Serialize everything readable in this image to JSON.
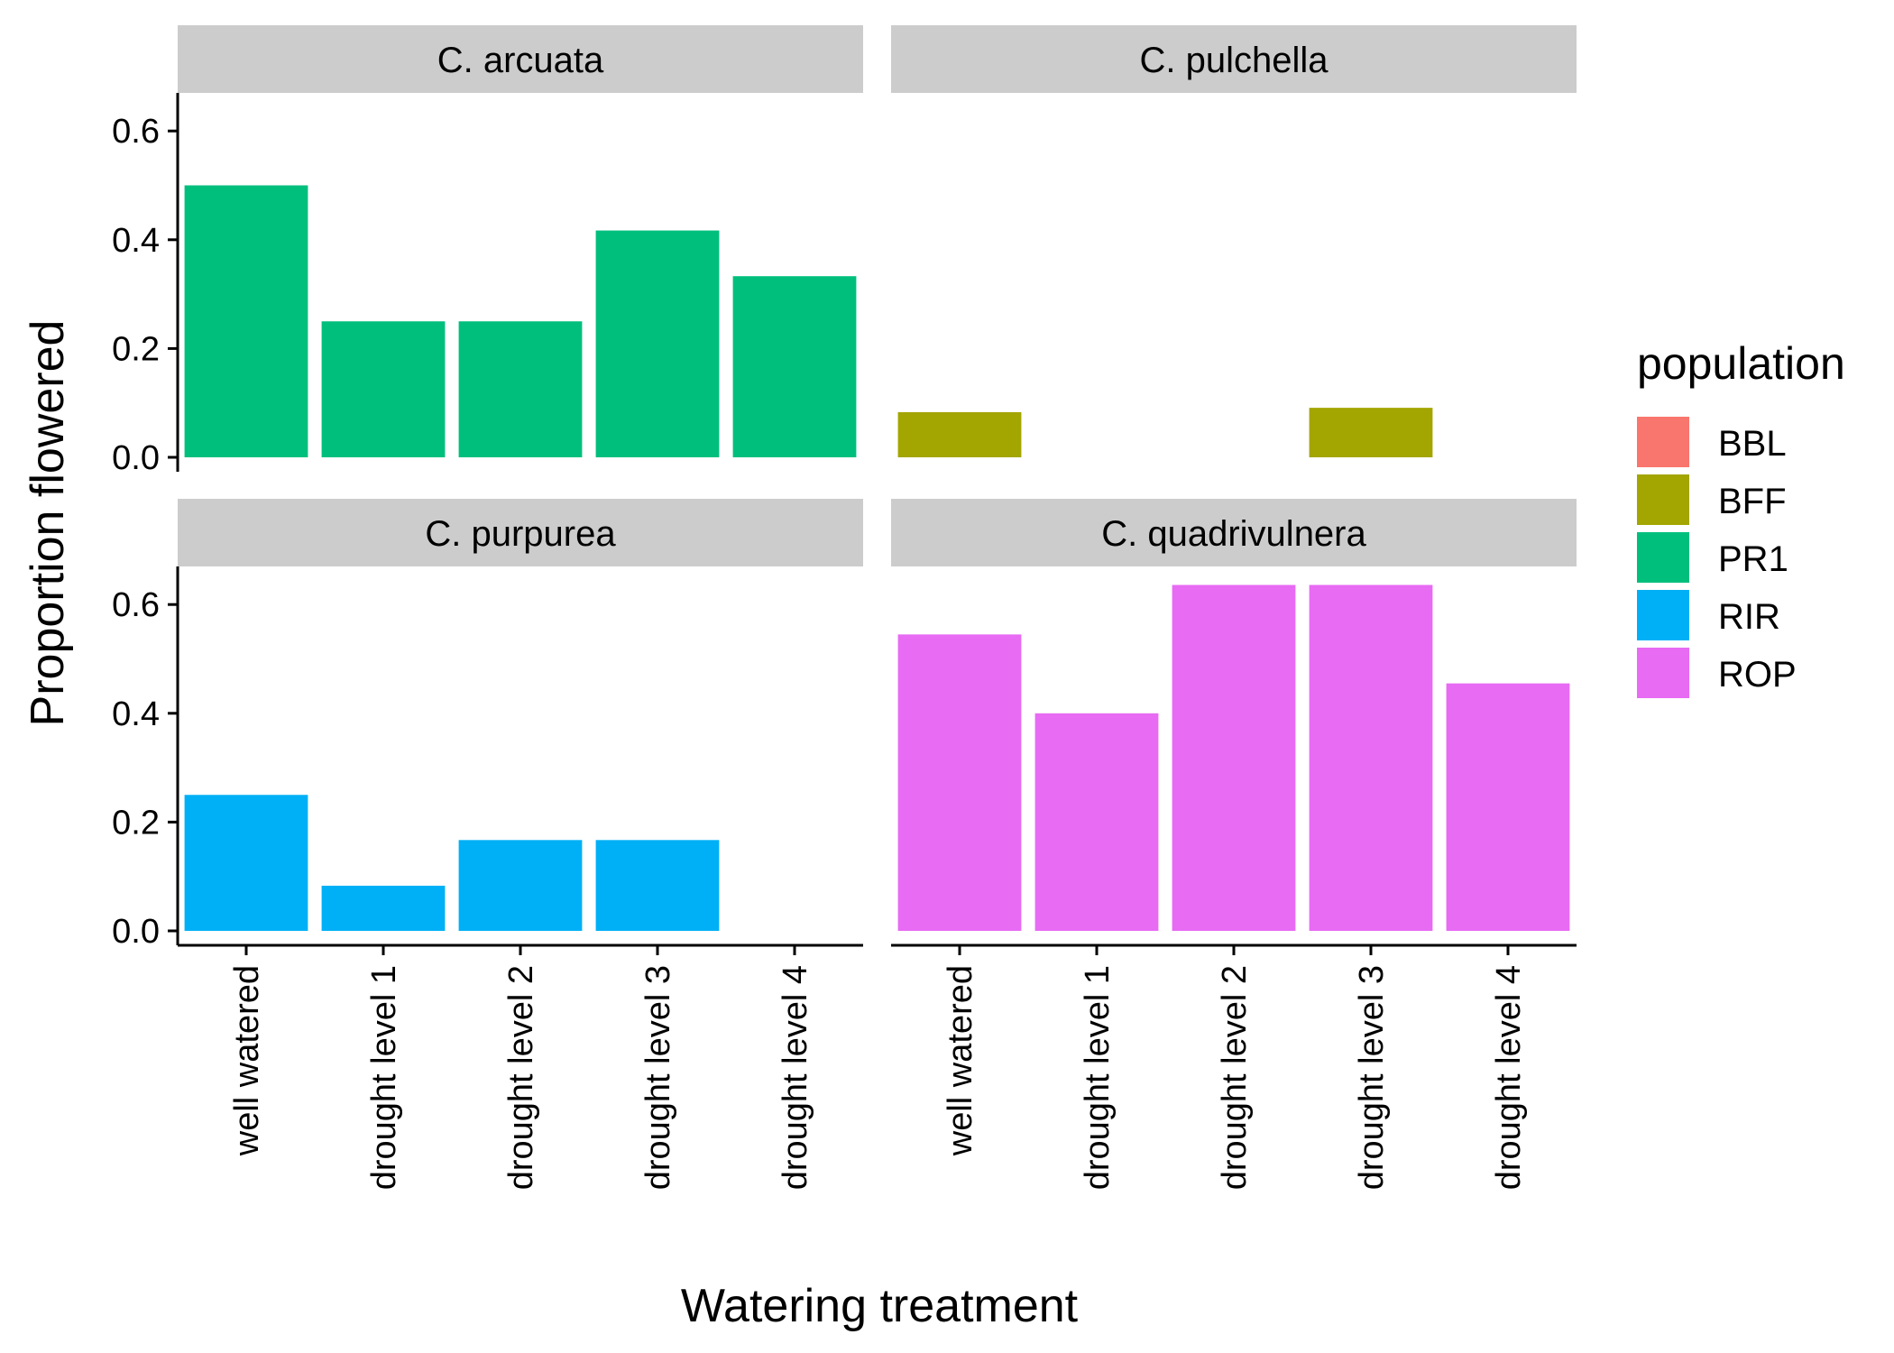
{
  "chart_data": {
    "type": "bar",
    "xlabel": "Watering treatment",
    "ylabel": "Proportion flowered",
    "ylim": [
      0,
      0.67
    ],
    "yticks": [
      "0.0",
      "0.2",
      "0.4",
      "0.6"
    ],
    "categories": [
      "well watered",
      "drought level 1",
      "drought level 2",
      "drought level 3",
      "drought level 4"
    ],
    "legend": {
      "title": "population",
      "position": "right",
      "entries": [
        {
          "name": "BBL",
          "color": "#F8766D"
        },
        {
          "name": "BFF",
          "color": "#A3A500"
        },
        {
          "name": "PR1",
          "color": "#00BF7D"
        },
        {
          "name": "RIR",
          "color": "#00B0F6"
        },
        {
          "name": "ROP",
          "color": "#E76BF3"
        }
      ]
    },
    "panels": [
      {
        "title": "C. arcuata",
        "series": [
          {
            "name": "PR1",
            "values": [
              0.5,
              0.25,
              0.25,
              0.417,
              0.333
            ]
          }
        ]
      },
      {
        "title": "C. pulchella",
        "series": [
          {
            "name": "BFF",
            "values": [
              0.083,
              null,
              null,
              0.091,
              null
            ]
          }
        ]
      },
      {
        "title": "C. purpurea",
        "series": [
          {
            "name": "RIR",
            "values": [
              0.25,
              0.083,
              0.167,
              0.167,
              null
            ]
          }
        ]
      },
      {
        "title": "C. quadrivulnera",
        "series": [
          {
            "name": "ROP",
            "values": [
              0.545,
              0.4,
              0.636,
              0.636,
              0.455
            ]
          }
        ]
      }
    ]
  }
}
